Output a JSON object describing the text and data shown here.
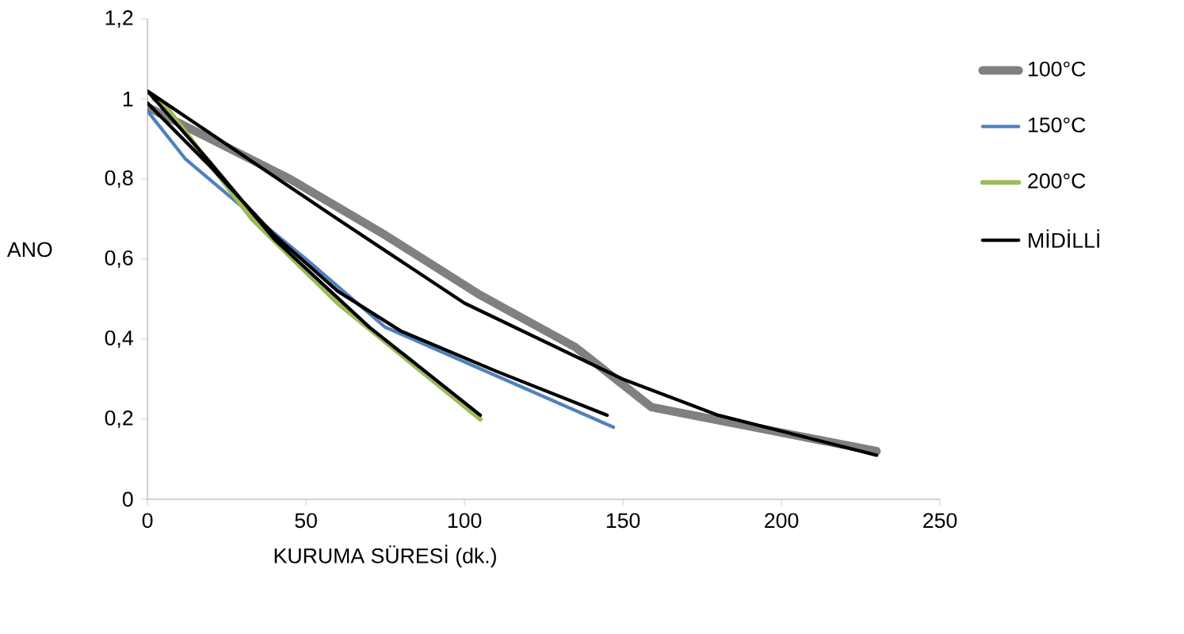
{
  "chart_data": {
    "type": "line",
    "xlabel": "KURUMA SÜRESİ (dk.)",
    "ylabel": "ANO",
    "xlim": [
      0,
      250
    ],
    "xticks": [
      0,
      50,
      100,
      150,
      200,
      250
    ],
    "ylim": [
      0,
      1.2
    ],
    "yticks": [
      0,
      {
        "value": 0.2,
        "label": "0,2"
      },
      {
        "value": 0.4,
        "label": "0,4"
      },
      {
        "value": 0.6,
        "label": "0,6"
      },
      {
        "value": 0.8,
        "label": "0,8"
      },
      1,
      {
        "value": 1.2,
        "label": "1,2"
      }
    ],
    "grid": false,
    "legend": "right",
    "marker": "none",
    "line_style": "solid",
    "series": [
      {
        "name": "100°C",
        "color": "#808080",
        "x": [
          0,
          15,
          45,
          75,
          105,
          135,
          159,
          230
        ],
        "values": [
          0.98,
          0.92,
          0.8,
          0.66,
          0.51,
          0.38,
          0.23,
          0.12
        ]
      },
      {
        "name": "150°C",
        "color": "#4f81bd",
        "x": [
          0,
          12,
          30,
          50,
          75,
          147
        ],
        "values": [
          0.97,
          0.85,
          0.73,
          0.6,
          0.43,
          0.18
        ]
      },
      {
        "name": "200°C",
        "color": "#9bbb59",
        "x": [
          2,
          5,
          33,
          60,
          105
        ],
        "values": [
          1.0,
          0.99,
          0.7,
          0.49,
          0.2
        ]
      },
      {
        "name": "MİDİLLİ",
        "color": "#000000",
        "x": [
          0,
          30,
          60,
          100,
          150,
          180,
          230,
          null,
          0,
          20,
          40,
          60,
          80,
          110,
          145,
          null,
          0,
          20,
          40,
          70,
          105
        ],
        "values": [
          1.02,
          0.86,
          0.7,
          0.49,
          0.3,
          0.21,
          0.11,
          null,
          0.99,
          0.83,
          0.66,
          0.52,
          0.42,
          0.32,
          0.21,
          null,
          1.02,
          0.84,
          0.65,
          0.43,
          0.21
        ]
      }
    ]
  }
}
